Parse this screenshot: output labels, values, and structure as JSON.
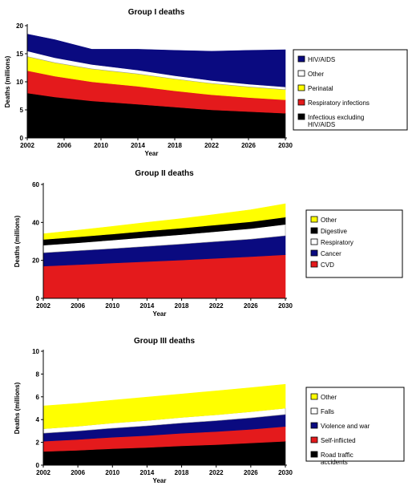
{
  "chart_data": [
    {
      "type": "area",
      "title": "Group I deaths",
      "xlabel": "Year",
      "ylabel": "Deaths (millions)",
      "ylim": [
        0,
        20
      ],
      "yticks": [
        "0",
        "5",
        "10",
        "15",
        "20"
      ],
      "xticks": [
        "2002",
        "2006",
        "2010",
        "2014",
        "2018",
        "2022",
        "2026",
        "2030"
      ],
      "x": [
        2002,
        2005,
        2009,
        2014,
        2018,
        2022,
        2026,
        2030
      ],
      "stacked": true,
      "series": [
        {
          "name": "Infectious excluding HIV/AIDS",
          "color": "#000000",
          "values": [
            8.0,
            7.3,
            6.6,
            6.0,
            5.5,
            5.0,
            4.7,
            4.4
          ]
        },
        {
          "name": "Respiratory infections",
          "color": "#e41a1c",
          "values": [
            4.0,
            3.7,
            3.4,
            3.2,
            2.9,
            2.7,
            2.5,
            2.4
          ]
        },
        {
          "name": "Perinatal",
          "color": "#ffff00",
          "values": [
            2.5,
            2.4,
            2.3,
            2.2,
            2.1,
            2.0,
            1.9,
            1.8
          ]
        },
        {
          "name": "Other",
          "color": "#ffffff",
          "values": [
            1.0,
            0.9,
            0.8,
            0.7,
            0.6,
            0.55,
            0.5,
            0.5
          ]
        },
        {
          "name": "HIV/AIDS",
          "color": "#0a0a80",
          "values": [
            3.0,
            3.2,
            2.7,
            3.7,
            4.5,
            5.2,
            6.0,
            6.6
          ]
        }
      ],
      "legend_placement": "right"
    },
    {
      "type": "area",
      "title": "Group II deaths",
      "xlabel": "Year",
      "ylabel": "Deaths (millions)",
      "ylim": [
        0,
        60
      ],
      "yticks": [
        "0",
        "20",
        "40",
        "60"
      ],
      "xticks": [
        "2002",
        "2006",
        "2010",
        "2014",
        "2018",
        "2022",
        "2026",
        "2030"
      ],
      "x": [
        2002,
        2006,
        2010,
        2014,
        2018,
        2022,
        2026,
        2030
      ],
      "stacked": true,
      "series": [
        {
          "name": "CVD",
          "color": "#e41a1c",
          "values": [
            17,
            17.8,
            18.6,
            19.4,
            20.2,
            21.1,
            22,
            23
          ]
        },
        {
          "name": "Cancer",
          "color": "#0a0a80",
          "values": [
            7,
            7.3,
            7.6,
            8.0,
            8.4,
            8.8,
            9.2,
            10
          ]
        },
        {
          "name": "Respiratory",
          "color": "#ffffff",
          "values": [
            4,
            4.2,
            4.5,
            4.8,
            5.0,
            5.3,
            5.6,
            6
          ]
        },
        {
          "name": "Digestive",
          "color": "#000000",
          "values": [
            3,
            3.1,
            3.2,
            3.3,
            3.4,
            3.5,
            3.6,
            3.8
          ]
        },
        {
          "name": "Other",
          "color": "#ffff00",
          "values": [
            3,
            3.5,
            4.0,
            4.5,
            5.0,
            5.6,
            6.3,
            7
          ]
        }
      ],
      "legend_placement": "right"
    },
    {
      "type": "area",
      "title": "Group III deaths",
      "xlabel": "Year",
      "ylabel": "Deaths (millions)",
      "ylim": [
        0,
        10
      ],
      "yticks": [
        "0",
        "2",
        "4",
        "6",
        "8",
        "10"
      ],
      "xticks": [
        "2002",
        "2006",
        "2010",
        "2014",
        "2018",
        "2022",
        "2026",
        "2030"
      ],
      "x": [
        2002,
        2006,
        2010,
        2014,
        2018,
        2022,
        2026,
        2030
      ],
      "stacked": true,
      "series": [
        {
          "name": "Road traffic accidents",
          "color": "#000000",
          "values": [
            1.2,
            1.3,
            1.45,
            1.55,
            1.7,
            1.8,
            1.95,
            2.1
          ]
        },
        {
          "name": "Self-inflicted",
          "color": "#e41a1c",
          "values": [
            0.9,
            0.95,
            1.0,
            1.05,
            1.1,
            1.15,
            1.2,
            1.3
          ]
        },
        {
          "name": "Violence and war",
          "color": "#0a0a80",
          "values": [
            0.7,
            0.75,
            0.8,
            0.85,
            0.9,
            0.95,
            1.0,
            1.05
          ]
        },
        {
          "name": "Falls",
          "color": "#ffffff",
          "values": [
            0.4,
            0.42,
            0.45,
            0.47,
            0.5,
            0.52,
            0.55,
            0.55
          ]
        },
        {
          "name": "Other",
          "color": "#ffff00",
          "values": [
            2.0,
            2.0,
            2.0,
            2.05,
            2.05,
            2.1,
            2.1,
            2.1
          ]
        }
      ],
      "legend_placement": "right"
    }
  ]
}
